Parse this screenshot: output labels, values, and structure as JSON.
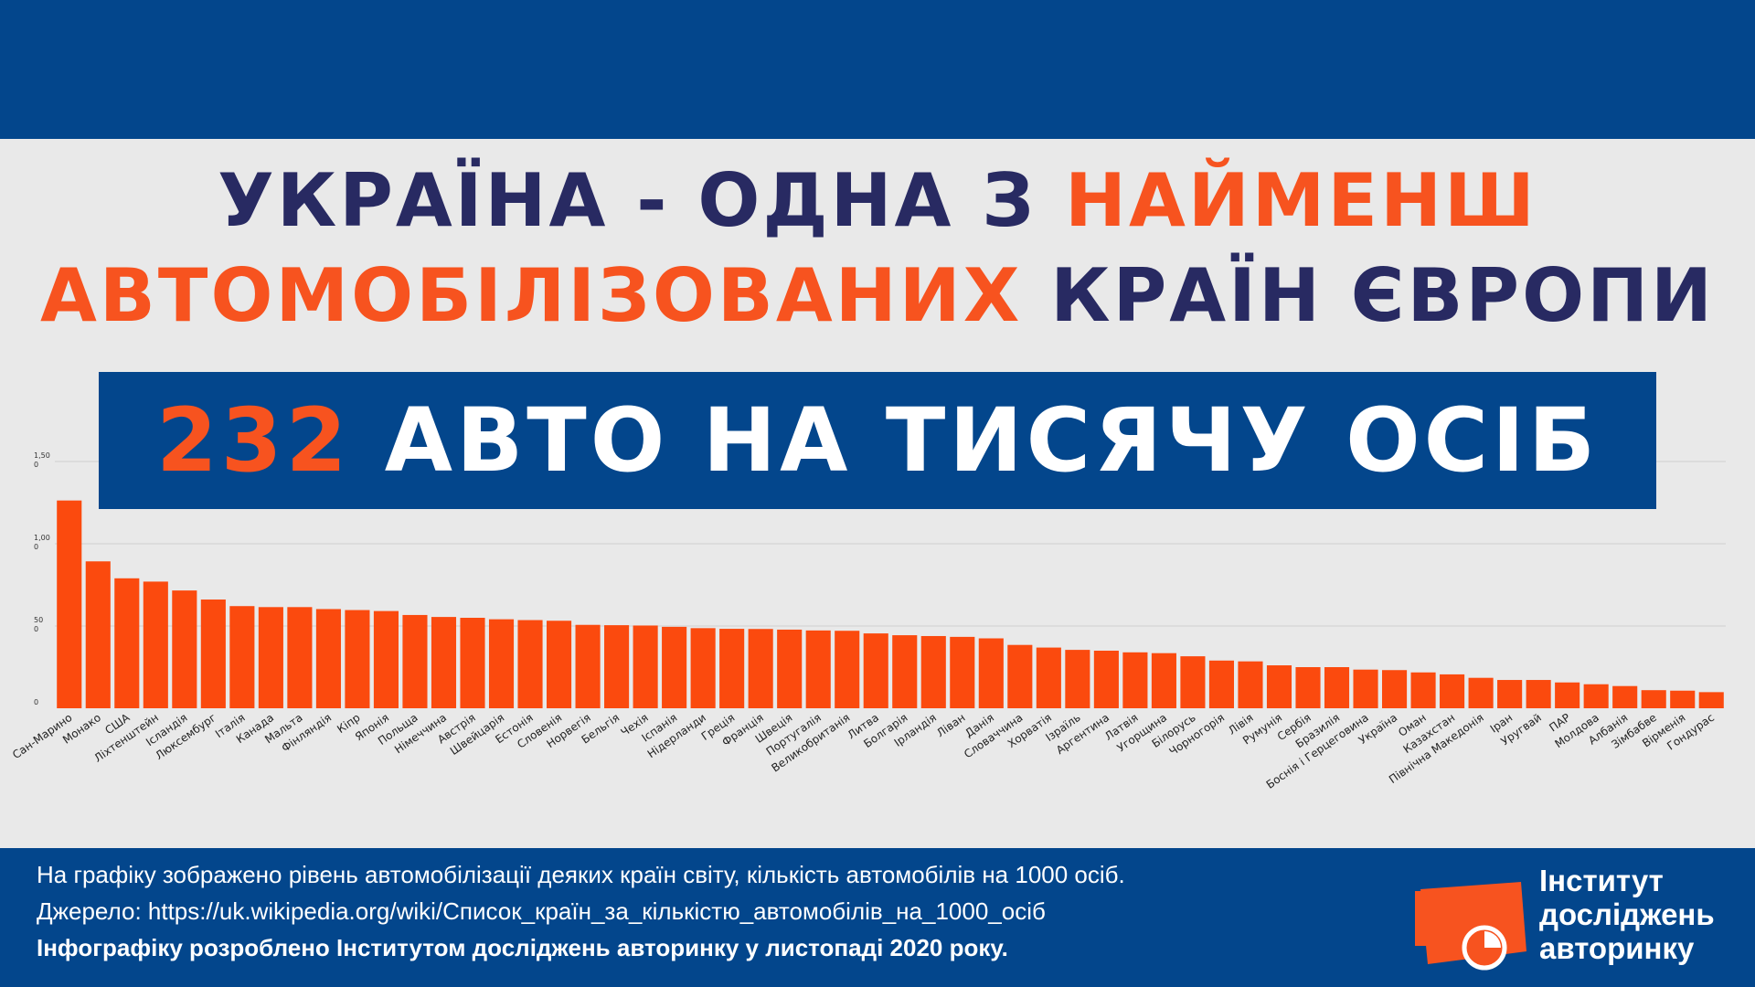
{
  "header": {
    "line1_a": "Україна - одна з",
    "line1_b": "найменш",
    "line2_a": "автомобілізованих",
    "line2_b": "країн Європи"
  },
  "banner": {
    "number": "232",
    "text": "авто на тисячу осіб"
  },
  "colors": {
    "dark_blue": "#03468c",
    "navy_text": "#282a62",
    "orange": "#f7531f",
    "background": "#e9e9e9"
  },
  "chart_data": {
    "type": "bar",
    "title": "",
    "xlabel": "",
    "ylabel": "",
    "ylim": [
      0,
      1500
    ],
    "grid": true,
    "y_ticks": [
      {
        "value": 0,
        "line1": "0",
        "line2": ""
      },
      {
        "value": 500,
        "line1": "50",
        "line2": "0"
      },
      {
        "value": 1000,
        "line1": "1,00",
        "line2": "0"
      },
      {
        "value": 1500,
        "line1": "1,50",
        "line2": "0"
      }
    ],
    "categories": [
      "Сан-Марино",
      "Монако",
      "США",
      "Ліхтенштейн",
      "Ісландія",
      "Люксембург",
      "Італія",
      "Канада",
      "Мальта",
      "Фінляндія",
      "Кіпр",
      "Японія",
      "Польща",
      "Німеччина",
      "Австрія",
      "Швейцарія",
      "Естонія",
      "Словенія",
      "Норвегія",
      "Бельгія",
      "Чехія",
      "Іспанія",
      "Нідерланди",
      "Греція",
      "Франція",
      "Швеція",
      "Португалія",
      "Великобританія",
      "Литва",
      "Болгарія",
      "Ірландія",
      "Ліван",
      "Данія",
      "Словаччина",
      "Хорватія",
      "Ізраїль",
      "Аргентина",
      "Латвія",
      "Угорщина",
      "Білорусь",
      "Чорногорія",
      "Лівія",
      "Румунія",
      "Сербія",
      "Бразилія",
      "Боснія і Герцеговина",
      "Україна",
      "Оман",
      "Казахстан",
      "Північна Македонія",
      "Іран",
      "Уругвай",
      "ПАР",
      "Молдова",
      "Албанія",
      "Зімбабве",
      "Вірменія",
      "Гондурас"
    ],
    "values": [
      1263,
      893,
      790,
      770,
      716,
      661,
      621,
      615,
      615,
      603,
      597,
      591,
      567,
      555,
      550,
      541,
      536,
      532,
      507,
      505,
      503,
      495,
      487,
      483,
      482,
      478,
      473,
      471,
      455,
      444,
      439,
      434,
      425,
      385,
      369,
      355,
      350,
      340,
      335,
      316,
      290,
      285,
      261,
      250,
      250,
      235,
      232,
      218,
      206,
      185,
      172,
      172,
      157,
      146,
      135,
      110,
      107,
      98
    ]
  },
  "footer": {
    "description": "На графіку зображено рівень автомобілізації деяких країн світу, кількість автомобілів на 1000 осіб.",
    "source": "Джерело: https://uk.wikipedia.org/wiki/Список_країн_за_кількістю_автомобілів_на_1000_осіб",
    "credit": "Інфографіку розроблено Інститутом досліджень авторинку у листопаді 2020 року."
  },
  "logo": {
    "line1": "Інститут",
    "line2": "досліджень",
    "line3": "авторинку",
    "icon": "car-chart-icon"
  }
}
